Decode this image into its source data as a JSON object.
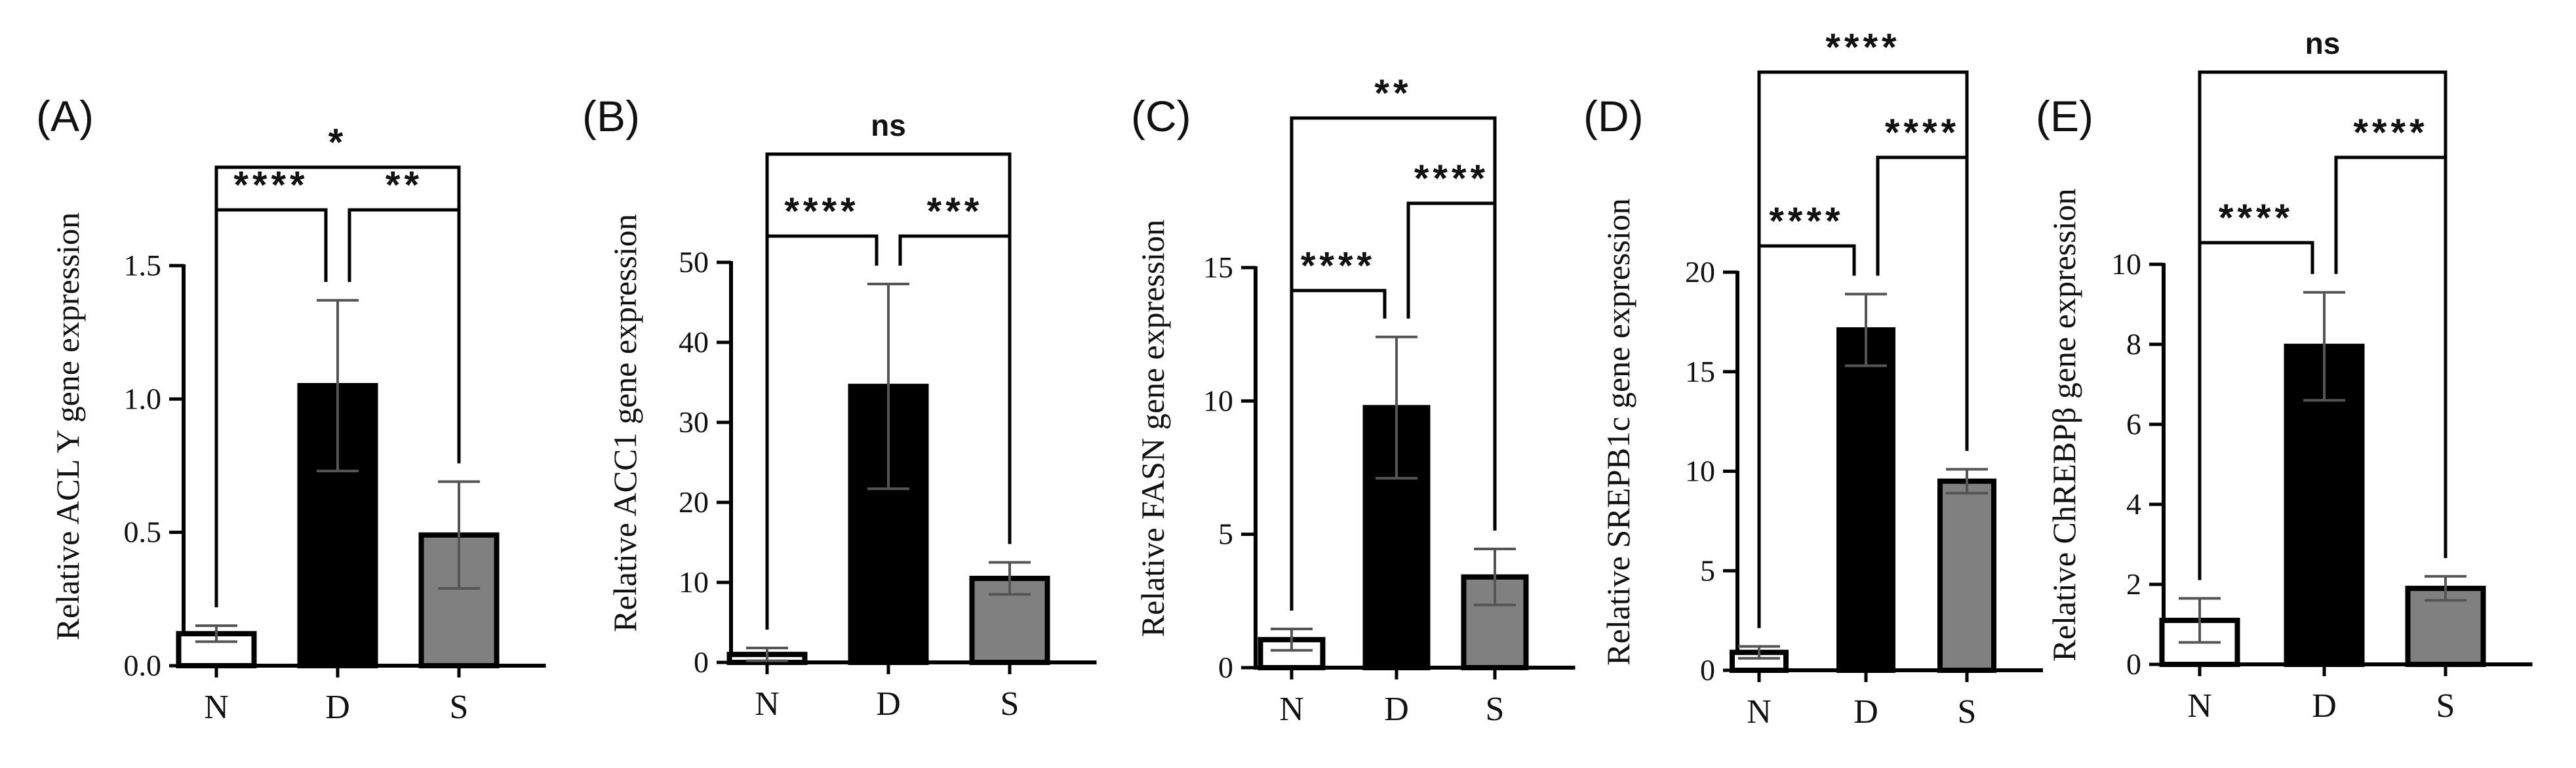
{
  "chart_data": [
    {
      "type": "bar",
      "panel": "(A)",
      "ylabel": "Relative ACL Y gene expression",
      "categories": [
        "N",
        "D",
        "S"
      ],
      "values": [
        0.12,
        1.05,
        0.49
      ],
      "errors": [
        0.03,
        0.32,
        0.2
      ],
      "colors": [
        "#ffffff",
        "#000000",
        "#808080"
      ],
      "ylim": [
        0,
        1.5
      ],
      "yticks": [
        "0.0",
        "0.5",
        "1.0",
        "1.5"
      ],
      "significance": [
        {
          "from": 0,
          "to": 1,
          "label": "****"
        },
        {
          "from": 1,
          "to": 2,
          "label": "**"
        },
        {
          "from": 0,
          "to": 2,
          "label": "*"
        }
      ]
    },
    {
      "type": "bar",
      "panel": "(B)",
      "ylabel": "Relative ACC1 gene expression",
      "categories": [
        "N",
        "D",
        "S"
      ],
      "values": [
        1.0,
        34.5,
        10.5
      ],
      "errors": [
        0.8,
        12.8,
        2.0
      ],
      "colors": [
        "#ffffff",
        "#000000",
        "#808080"
      ],
      "ylim": [
        0,
        50
      ],
      "yticks": [
        "0",
        "10",
        "20",
        "30",
        "40",
        "50"
      ],
      "significance": [
        {
          "from": 0,
          "to": 1,
          "label": "****"
        },
        {
          "from": 1,
          "to": 2,
          "label": "***"
        },
        {
          "from": 0,
          "to": 2,
          "label": "ns"
        }
      ]
    },
    {
      "type": "bar",
      "panel": "(C)",
      "ylabel": "Relative FASN gene expression",
      "categories": [
        "N",
        "D",
        "S"
      ],
      "values": [
        1.05,
        9.75,
        3.4
      ],
      "errors": [
        0.4,
        2.65,
        1.05
      ],
      "colors": [
        "#ffffff",
        "#000000",
        "#808080"
      ],
      "ylim": [
        0,
        15
      ],
      "yticks": [
        "0",
        "5",
        "10",
        "15"
      ],
      "significance": [
        {
          "from": 0,
          "to": 1,
          "label": "****"
        },
        {
          "from": 1,
          "to": 2,
          "label": "****"
        },
        {
          "from": 0,
          "to": 2,
          "label": "**"
        }
      ]
    },
    {
      "type": "bar",
      "panel": "(D)",
      "ylabel": "Relative SREPB1c gene expression",
      "categories": [
        "N",
        "D",
        "S"
      ],
      "values": [
        0.9,
        17.1,
        9.5
      ],
      "errors": [
        0.3,
        1.8,
        0.6
      ],
      "colors": [
        "#ffffff",
        "#000000",
        "#808080"
      ],
      "ylim": [
        0,
        20
      ],
      "yticks": [
        "0",
        "5",
        "10",
        "15",
        "20"
      ],
      "significance": [
        {
          "from": 0,
          "to": 1,
          "label": "****"
        },
        {
          "from": 1,
          "to": 2,
          "label": "****"
        },
        {
          "from": 0,
          "to": 2,
          "label": "****"
        }
      ]
    },
    {
      "type": "bar",
      "panel": "(E)",
      "ylabel": "Relative ChREBPβ gene expression",
      "categories": [
        "N",
        "D",
        "S"
      ],
      "values": [
        1.1,
        7.95,
        1.9
      ],
      "errors": [
        0.55,
        1.35,
        0.3
      ],
      "colors": [
        "#ffffff",
        "#000000",
        "#808080"
      ],
      "ylim": [
        0,
        10
      ],
      "yticks": [
        "0",
        "2",
        "4",
        "6",
        "8",
        "10"
      ],
      "significance": [
        {
          "from": 0,
          "to": 1,
          "label": "****"
        },
        {
          "from": 1,
          "to": 2,
          "label": "****"
        },
        {
          "from": 0,
          "to": 2,
          "label": "ns"
        }
      ]
    }
  ]
}
